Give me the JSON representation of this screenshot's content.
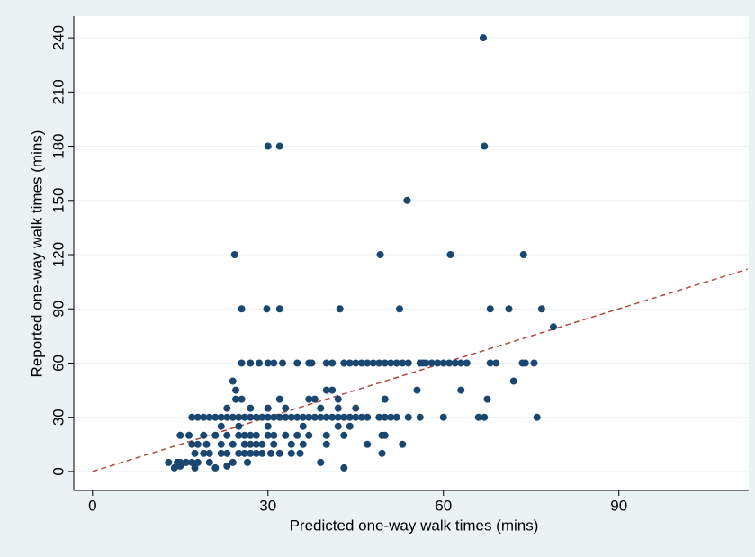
{
  "chart_data": {
    "type": "scatter",
    "x_label": "Predicted one-way walk times (mins)",
    "y_label": "Reported one-way walk times (mins)",
    "xlim": [
      -3.2,
      112.2
    ],
    "ylim": [
      -10.5,
      252
    ],
    "xticks": [
      0,
      30,
      60,
      90
    ],
    "yticks": [
      0,
      30,
      60,
      90,
      120,
      150,
      180,
      210,
      240
    ],
    "grid": true,
    "color": "#1a476f",
    "line": {
      "x": [
        0,
        112
      ],
      "y": [
        0,
        112
      ],
      "color": "#b04a44"
    },
    "x": [
      66.8,
      30,
      32,
      67,
      53.8,
      24.3,
      49.2,
      61.2,
      73.7,
      25.5,
      29.8,
      32,
      42.3,
      52.5,
      68,
      71.2,
      76.8,
      78.8,
      25.5,
      27,
      28.5,
      30,
      31,
      32.5,
      35,
      37,
      37.5,
      40,
      41,
      43,
      44,
      45,
      46,
      47,
      48,
      49,
      50,
      51,
      52,
      53,
      54,
      56,
      56.5,
      57,
      58,
      59,
      60,
      61,
      62,
      63,
      64,
      68,
      69,
      73.5,
      74,
      75.5,
      24,
      72,
      24.5,
      40,
      41,
      55.5,
      63,
      24.5,
      25.5,
      32,
      37,
      38,
      50,
      67.5,
      42,
      23,
      27,
      30,
      33,
      39,
      42,
      45,
      17,
      18,
      19,
      20,
      21,
      22,
      23,
      24,
      25,
      26,
      27,
      28,
      29,
      30,
      31,
      32,
      33,
      34,
      35,
      36,
      37,
      38,
      39,
      40,
      41,
      42,
      43,
      44,
      45,
      46,
      47,
      49,
      50,
      51,
      52,
      54,
      56,
      60,
      66,
      67,
      76,
      22,
      25,
      30,
      36,
      42,
      44,
      15,
      16.5,
      19,
      21,
      23,
      25,
      26,
      27,
      28,
      30,
      31,
      33,
      35,
      37,
      40,
      43,
      49.5,
      50,
      17,
      18,
      19.5,
      22,
      24,
      26,
      27,
      28,
      29,
      31,
      34,
      36,
      40,
      47,
      53,
      17.5,
      19,
      20,
      22,
      23,
      25,
      26,
      27,
      28,
      29,
      30.5,
      32,
      34,
      35.5,
      49.5,
      13,
      14.5,
      15,
      16,
      17,
      18,
      20,
      24,
      26.5,
      39,
      14,
      17.5,
      21,
      43,
      15,
      23
    ],
    "values": [
      240,
      180,
      180,
      180,
      150,
      120,
      120,
      120,
      120,
      90,
      90,
      90,
      90,
      90,
      90,
      90,
      90,
      80,
      60,
      60,
      60,
      60,
      60,
      60,
      60,
      60,
      60,
      60,
      60,
      60,
      60,
      60,
      60,
      60,
      60,
      60,
      60,
      60,
      60,
      60,
      60,
      60,
      60,
      60,
      60,
      60,
      60,
      60,
      60,
      60,
      60,
      60,
      60,
      60,
      60,
      60,
      50,
      50,
      45,
      45,
      45,
      45,
      45,
      40,
      40,
      40,
      40,
      40,
      40,
      40,
      40,
      35,
      35,
      35,
      35,
      35,
      35,
      35,
      30,
      30,
      30,
      30,
      30,
      30,
      30,
      30,
      30,
      30,
      30,
      30,
      30,
      30,
      30,
      30,
      30,
      30,
      30,
      30,
      30,
      30,
      30,
      30,
      30,
      30,
      30,
      30,
      30,
      30,
      30,
      30,
      30,
      30,
      30,
      30,
      30,
      30,
      30,
      30,
      30,
      25,
      25,
      25,
      25,
      25,
      25,
      20,
      20,
      20,
      20,
      20,
      20,
      20,
      20,
      20,
      20,
      20,
      20,
      20,
      20,
      20,
      20,
      20,
      20,
      15,
      15,
      15,
      15,
      15,
      15,
      15,
      15,
      15,
      15,
      15,
      15,
      15,
      15,
      15,
      10,
      10,
      10,
      10,
      10,
      10,
      10,
      10,
      10,
      10,
      10,
      10,
      10,
      10,
      10,
      5,
      5,
      5,
      5,
      5,
      5,
      5,
      5,
      5,
      5,
      2,
      2,
      2,
      2,
      3,
      3
    ]
  }
}
